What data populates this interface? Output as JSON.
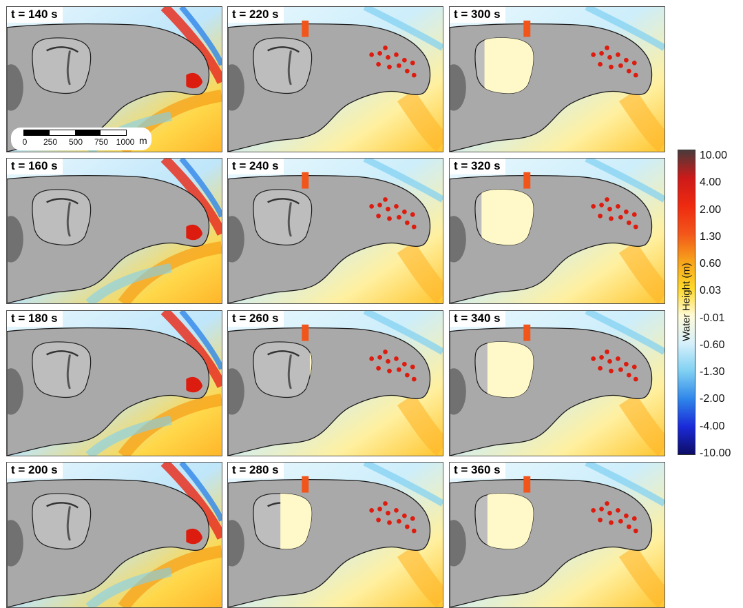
{
  "panels": [
    {
      "label": "t = 140 s",
      "stage": 0,
      "flood_fraction": 0.0
    },
    {
      "label": "t = 220 s",
      "stage": 1,
      "flood_fraction": 0.0
    },
    {
      "label": "t = 300 s",
      "stage": 2,
      "flood_fraction": 0.85
    },
    {
      "label": "t = 160 s",
      "stage": 0,
      "flood_fraction": 0.0
    },
    {
      "label": "t = 240 s",
      "stage": 1,
      "flood_fraction": 0.0
    },
    {
      "label": "t = 320 s",
      "stage": 2,
      "flood_fraction": 0.9
    },
    {
      "label": "t = 180 s",
      "stage": 0,
      "flood_fraction": 0.0
    },
    {
      "label": "t = 260 s",
      "stage": 1,
      "flood_fraction": 0.05
    },
    {
      "label": "t = 340 s",
      "stage": 2,
      "flood_fraction": 0.8
    },
    {
      "label": "t = 200 s",
      "stage": 0,
      "flood_fraction": 0.0
    },
    {
      "label": "t = 280 s",
      "stage": 2,
      "flood_fraction": 0.55
    },
    {
      "label": "t = 360 s",
      "stage": 2,
      "flood_fraction": 0.8
    }
  ],
  "scalebar": {
    "ticks": [
      "0",
      "250",
      "500",
      "750",
      "1000"
    ],
    "unit": "m"
  },
  "colorbar": {
    "title": "Water Height (m)",
    "labels": [
      "10.00",
      "4.00",
      "2.00",
      "1.30",
      "0.60",
      "0.03",
      "-0.01",
      "-0.60",
      "-1.30",
      "-2.00",
      "-4.00",
      "-10.00"
    ],
    "colors": [
      "#4a3a3a",
      "#cc1a1a",
      "#ee2a10",
      "#f2551a",
      "#f7a21a",
      "#ffd92a",
      "#fffbd8",
      "#d5f0fb",
      "#7fd0f2",
      "#2f86ea",
      "#1a2ad8",
      "#0d0d66"
    ]
  },
  "colors": {
    "land": "#a9a9a9",
    "crater": "#bdbdbd",
    "flood": "#fff8c8",
    "inundation": "#dd1c10",
    "coast": "#1a1a1a"
  }
}
